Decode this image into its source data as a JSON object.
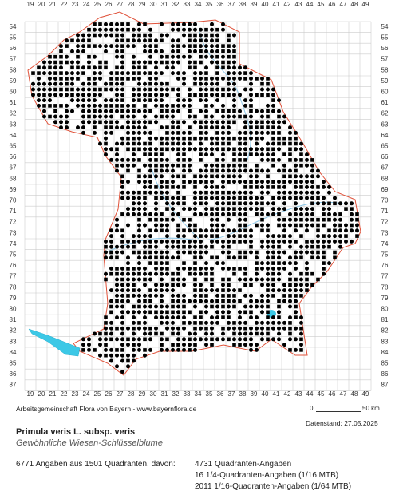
{
  "map": {
    "columns": [
      19,
      20,
      21,
      22,
      23,
      24,
      25,
      26,
      27,
      28,
      29,
      30,
      31,
      32,
      33,
      34,
      35,
      36,
      37,
      38,
      39,
      40,
      41,
      42,
      43,
      44,
      45,
      46,
      47,
      48,
      49
    ],
    "rows": [
      54,
      55,
      56,
      57,
      58,
      59,
      60,
      61,
      62,
      63,
      64,
      65,
      66,
      67,
      68,
      69,
      70,
      71,
      72,
      73,
      74,
      75,
      76,
      77,
      78,
      79,
      80,
      81,
      82,
      83,
      84,
      85,
      86,
      87
    ],
    "credit": "Arbeitsgemeinschaft Flora von Bayern - www.bayernflora.de",
    "scale_start": "0",
    "scale_end": "50 km",
    "data_date": "Datenstand: 27.05.2025"
  },
  "species": {
    "name": "Primula veris L. subsp. veris",
    "common_name": "Gewöhnliche Wiesen-Schlüsselblume"
  },
  "stats": {
    "summary": "6771 Angaben aus 1501 Quadranten, davon:",
    "lines": [
      "4731 Quadranten-Angaben",
      "16 1/4-Quadranten-Angaben (1/16 MTB)",
      "2011 1/16-Quadranten-Angaben (1/64 MTB)"
    ]
  }
}
